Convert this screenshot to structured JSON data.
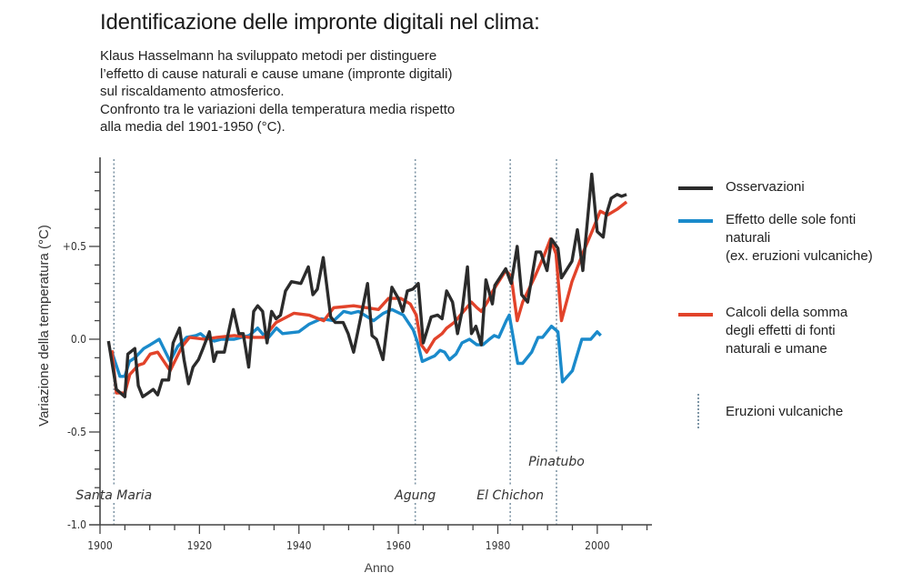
{
  "header": {
    "title": "Identificazione delle impronte digitali nel clima:",
    "subtitle_lines": [
      "Klaus Hasselmann ha sviluppato metodi per distinguere",
      "l’effetto di cause naturali e cause umane (impronte digitali)",
      "sul riscaldamento atmosferico.",
      "Confronto tra le variazioni della temperatura media rispetto",
      "alla media del 1901-1950 (°C)."
    ]
  },
  "legend": {
    "items": [
      {
        "key": "observations",
        "lines": [
          "Osservazioni"
        ],
        "color": "#2b2b2b",
        "style": "solid"
      },
      {
        "key": "natural",
        "lines": [
          "Effetto delle sole fonti",
          "naturali",
          "(ex. eruzioni vulcaniche)"
        ],
        "color": "#1a8acb",
        "style": "solid"
      },
      {
        "key": "combined",
        "lines": [
          "Calcoli della somma",
          "degli effetti di fonti",
          "naturali e umane"
        ],
        "color": "#e2432a",
        "style": "solid"
      },
      {
        "key": "volcanic",
        "lines": [
          "Eruzioni vulcaniche"
        ],
        "color": "#7f96a6",
        "style": "dotted"
      }
    ]
  },
  "chart_data": {
    "type": "line",
    "title": "Identificazione delle impronte digitali nel clima",
    "xlabel": "Anno",
    "ylabel": "Variazione della temperatura (°C)",
    "xlim": [
      1900,
      2011
    ],
    "ylim": [
      -1.0,
      0.98
    ],
    "grid": false,
    "legend_position": "right",
    "x_ticks": [
      1900,
      1920,
      1940,
      1960,
      1980,
      2000
    ],
    "x_tick_labels": [
      "1900",
      "1920",
      "1940",
      "1960",
      "1980",
      "2000"
    ],
    "x_minor_step": 5,
    "y_ticks": [
      0.5,
      0.0,
      -0.5,
      -1.0
    ],
    "y_tick_labels": [
      "+0.5",
      "0.0",
      "-0.5",
      "-1.0"
    ],
    "y_minor_step": 0.1,
    "volcanoes": [
      {
        "name": "Santa Maria",
        "year": 1902.8,
        "label_level": "low"
      },
      {
        "name": "Agung",
        "year": 1963.4,
        "label_level": "low"
      },
      {
        "name": "El Chichon",
        "year": 1982.5,
        "label_level": "low"
      },
      {
        "name": "Pinatubo",
        "year": 1991.8,
        "label_level": "high"
      }
    ],
    "series": [
      {
        "name": "Osservazioni",
        "color": "#2b2b2b",
        "points": [
          [
            1901.7,
            -0.01
          ],
          [
            1903.3,
            -0.27
          ],
          [
            1905.0,
            -0.31
          ],
          [
            1905.6,
            -0.08
          ],
          [
            1907.0,
            -0.05
          ],
          [
            1907.7,
            -0.25
          ],
          [
            1908.6,
            -0.31
          ],
          [
            1909.7,
            -0.29
          ],
          [
            1910.7,
            -0.27
          ],
          [
            1911.6,
            -0.3
          ],
          [
            1912.5,
            -0.22
          ],
          [
            1913.8,
            -0.22
          ],
          [
            1914.7,
            -0.02
          ],
          [
            1916.0,
            0.06
          ],
          [
            1916.9,
            -0.11
          ],
          [
            1917.8,
            -0.24
          ],
          [
            1918.7,
            -0.15
          ],
          [
            1919.8,
            -0.11
          ],
          [
            1920.7,
            -0.05
          ],
          [
            1922.0,
            0.04
          ],
          [
            1922.9,
            -0.12
          ],
          [
            1923.5,
            -0.07
          ],
          [
            1925.0,
            -0.07
          ],
          [
            1926.8,
            0.16
          ],
          [
            1927.9,
            0.03
          ],
          [
            1928.8,
            0.03
          ],
          [
            1929.9,
            -0.15
          ],
          [
            1930.9,
            0.15
          ],
          [
            1931.7,
            0.18
          ],
          [
            1932.7,
            0.15
          ],
          [
            1933.6,
            -0.02
          ],
          [
            1934.5,
            0.15
          ],
          [
            1935.4,
            0.11
          ],
          [
            1936.3,
            0.13
          ],
          [
            1937.3,
            0.26
          ],
          [
            1938.5,
            0.31
          ],
          [
            1940.4,
            0.3
          ],
          [
            1941.9,
            0.39
          ],
          [
            1942.8,
            0.24
          ],
          [
            1943.7,
            0.27
          ],
          [
            1944.9,
            0.44
          ],
          [
            1946.4,
            0.12
          ],
          [
            1947.3,
            0.09
          ],
          [
            1948.9,
            0.09
          ],
          [
            1949.9,
            0.03
          ],
          [
            1951.0,
            -0.07
          ],
          [
            1952.3,
            0.1
          ],
          [
            1953.8,
            0.3
          ],
          [
            1954.7,
            0.02
          ],
          [
            1955.6,
            0.0
          ],
          [
            1956.9,
            -0.11
          ],
          [
            1958.7,
            0.28
          ],
          [
            1960.0,
            0.22
          ],
          [
            1960.9,
            0.15
          ],
          [
            1961.8,
            0.26
          ],
          [
            1962.9,
            0.27
          ],
          [
            1964.0,
            0.3
          ],
          [
            1965.0,
            -0.02
          ],
          [
            1966.6,
            0.12
          ],
          [
            1967.9,
            0.13
          ],
          [
            1968.8,
            0.11
          ],
          [
            1969.7,
            0.26
          ],
          [
            1970.9,
            0.2
          ],
          [
            1971.9,
            0.03
          ],
          [
            1972.8,
            0.15
          ],
          [
            1973.9,
            0.39
          ],
          [
            1974.7,
            0.03
          ],
          [
            1975.6,
            0.07
          ],
          [
            1976.7,
            -0.03
          ],
          [
            1977.6,
            0.32
          ],
          [
            1978.9,
            0.19
          ],
          [
            1979.4,
            0.29
          ],
          [
            1981.6,
            0.38
          ],
          [
            1982.7,
            0.3
          ],
          [
            1983.9,
            0.5
          ],
          [
            1984.8,
            0.24
          ],
          [
            1986.0,
            0.2
          ],
          [
            1987.7,
            0.47
          ],
          [
            1988.6,
            0.47
          ],
          [
            1989.9,
            0.37
          ],
          [
            1990.8,
            0.54
          ],
          [
            1992.1,
            0.49
          ],
          [
            1992.8,
            0.33
          ],
          [
            1994.9,
            0.42
          ],
          [
            1996.0,
            0.59
          ],
          [
            1997.1,
            0.37
          ],
          [
            1998.9,
            0.89
          ],
          [
            2000.0,
            0.58
          ],
          [
            2001.2,
            0.55
          ],
          [
            2001.8,
            0.67
          ],
          [
            2002.8,
            0.76
          ],
          [
            2004.0,
            0.78
          ],
          [
            2004.9,
            0.77
          ],
          [
            2005.9,
            0.78
          ]
        ]
      },
      {
        "name": "Effetto delle sole fonti naturali (ex. eruzioni vulcaniche)",
        "color": "#1a8acb",
        "points": [
          [
            1902.4,
            -0.07
          ],
          [
            1904.0,
            -0.2
          ],
          [
            1905.0,
            -0.2
          ],
          [
            1905.9,
            -0.12
          ],
          [
            1907.0,
            -0.1
          ],
          [
            1908.8,
            -0.05
          ],
          [
            1910.1,
            -0.03
          ],
          [
            1911.9,
            0.0
          ],
          [
            1914.1,
            -0.12
          ],
          [
            1915.6,
            -0.04
          ],
          [
            1917.4,
            0.01
          ],
          [
            1919.3,
            0.02
          ],
          [
            1920.2,
            0.03
          ],
          [
            1921.1,
            0.01
          ],
          [
            1923.0,
            -0.01
          ],
          [
            1924.4,
            0.0
          ],
          [
            1927.0,
            0.0
          ],
          [
            1930.0,
            0.02
          ],
          [
            1931.7,
            0.06
          ],
          [
            1933.6,
            0.0
          ],
          [
            1935.5,
            0.06
          ],
          [
            1936.7,
            0.03
          ],
          [
            1940.0,
            0.04
          ],
          [
            1942.0,
            0.08
          ],
          [
            1944.5,
            0.11
          ],
          [
            1947.0,
            0.1
          ],
          [
            1949.0,
            0.15
          ],
          [
            1950.5,
            0.14
          ],
          [
            1952.0,
            0.15
          ],
          [
            1955.0,
            0.1
          ],
          [
            1957.0,
            0.14
          ],
          [
            1958.7,
            0.16
          ],
          [
            1961.0,
            0.13
          ],
          [
            1963.0,
            0.05
          ],
          [
            1963.9,
            -0.02
          ],
          [
            1964.8,
            -0.12
          ],
          [
            1966.4,
            -0.1
          ],
          [
            1967.3,
            -0.09
          ],
          [
            1968.4,
            -0.06
          ],
          [
            1969.3,
            -0.07
          ],
          [
            1970.3,
            -0.11
          ],
          [
            1971.6,
            -0.08
          ],
          [
            1972.8,
            -0.02
          ],
          [
            1974.3,
            0.0
          ],
          [
            1975.8,
            -0.03
          ],
          [
            1977.0,
            -0.03
          ],
          [
            1978.3,
            0.0
          ],
          [
            1979.3,
            0.02
          ],
          [
            1980.2,
            0.01
          ],
          [
            1981.7,
            0.1
          ],
          [
            1982.3,
            0.13
          ],
          [
            1984.0,
            -0.13
          ],
          [
            1985.0,
            -0.13
          ],
          [
            1986.8,
            -0.07
          ],
          [
            1988.1,
            0.01
          ],
          [
            1989.0,
            0.01
          ],
          [
            1990.8,
            0.07
          ],
          [
            1992.1,
            0.04
          ],
          [
            1993.0,
            -0.23
          ],
          [
            1995.0,
            -0.17
          ],
          [
            1996.9,
            0.0
          ],
          [
            1998.7,
            0.0
          ],
          [
            2000.0,
            0.04
          ],
          [
            2000.7,
            0.02
          ]
        ]
      },
      {
        "name": "Calcoli della somma degli effetti di fonti naturali e umane",
        "color": "#e2432a",
        "points": [
          [
            1902.4,
            -0.06
          ],
          [
            1903.3,
            -0.29
          ],
          [
            1905.0,
            -0.29
          ],
          [
            1906.0,
            -0.19
          ],
          [
            1907.7,
            -0.14
          ],
          [
            1908.8,
            -0.13
          ],
          [
            1910.1,
            -0.08
          ],
          [
            1911.6,
            -0.07
          ],
          [
            1914.1,
            -0.17
          ],
          [
            1916.5,
            -0.04
          ],
          [
            1918.0,
            0.01
          ],
          [
            1921.1,
            0.0
          ],
          [
            1923.5,
            0.01
          ],
          [
            1927.0,
            0.02
          ],
          [
            1930.0,
            0.01
          ],
          [
            1933.0,
            0.01
          ],
          [
            1935.4,
            0.09
          ],
          [
            1939.0,
            0.14
          ],
          [
            1942.0,
            0.13
          ],
          [
            1945.0,
            0.1
          ],
          [
            1947.0,
            0.17
          ],
          [
            1951.0,
            0.18
          ],
          [
            1956.0,
            0.16
          ],
          [
            1958.0,
            0.22
          ],
          [
            1960.5,
            0.22
          ],
          [
            1962.4,
            0.19
          ],
          [
            1963.6,
            0.13
          ],
          [
            1964.6,
            -0.03
          ],
          [
            1965.7,
            -0.07
          ],
          [
            1967.3,
            0.0
          ],
          [
            1968.8,
            0.03
          ],
          [
            1969.7,
            0.06
          ],
          [
            1971.2,
            0.09
          ],
          [
            1972.8,
            0.14
          ],
          [
            1974.7,
            0.2
          ],
          [
            1975.8,
            0.17
          ],
          [
            1976.7,
            0.15
          ],
          [
            1977.9,
            0.2
          ],
          [
            1979.0,
            0.26
          ],
          [
            1981.6,
            0.37
          ],
          [
            1982.7,
            0.34
          ],
          [
            1983.9,
            0.1
          ],
          [
            1985.0,
            0.2
          ],
          [
            1987.5,
            0.34
          ],
          [
            1989.3,
            0.45
          ],
          [
            1990.6,
            0.54
          ],
          [
            1991.7,
            0.46
          ],
          [
            1992.8,
            0.1
          ],
          [
            1994.9,
            0.31
          ],
          [
            1997.2,
            0.47
          ],
          [
            1999.1,
            0.59
          ],
          [
            2000.6,
            0.69
          ],
          [
            2002.1,
            0.67
          ],
          [
            2004.0,
            0.7
          ],
          [
            2005.9,
            0.74
          ]
        ]
      }
    ]
  }
}
